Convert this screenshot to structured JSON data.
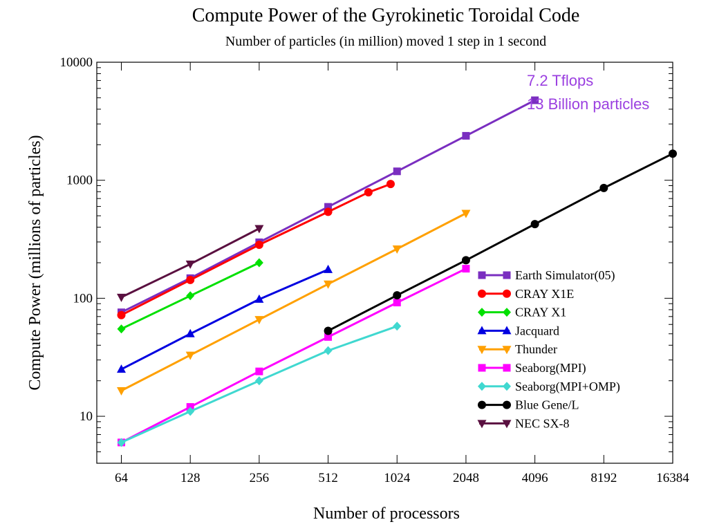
{
  "chart_data": {
    "type": "line",
    "title": "Compute Power of the Gyrokinetic Toroidal Code",
    "subtitle": "Number of particles (in million) moved 1 step in 1 second",
    "xlabel": "Number of processors",
    "ylabel": "Compute Power (millions of particles)",
    "x_scale": "log2",
    "y_scale": "log10",
    "xlim": [
      50,
      16384
    ],
    "ylim": [
      4,
      10000
    ],
    "x_ticks": [
      64,
      128,
      256,
      512,
      1024,
      2048,
      4096,
      8192,
      16384
    ],
    "x_tick_labels": [
      "64",
      "128",
      "256",
      "512",
      "1024",
      "2048",
      "4096",
      "8192",
      "16384"
    ],
    "y_ticks": [
      10,
      100,
      1000,
      10000
    ],
    "y_tick_labels": [
      "10",
      "100",
      "1000",
      "10000"
    ],
    "grid": false,
    "legend_position": "bottom-right",
    "series": [
      {
        "name": "Earth Simulator(05)",
        "color": "#7a2ec0",
        "marker": "square",
        "x": [
          64,
          128,
          256,
          512,
          1024,
          2048,
          4096
        ],
        "y": [
          76,
          148,
          298,
          595,
          1190,
          2380,
          4760
        ]
      },
      {
        "name": "CRAY X1E",
        "color": "#ff0000",
        "marker": "circle",
        "x": [
          64,
          128,
          256,
          512,
          768,
          960
        ],
        "y": [
          72,
          143,
          284,
          540,
          790,
          930
        ]
      },
      {
        "name": "CRAY X1",
        "color": "#00e000",
        "marker": "diamond",
        "x": [
          64,
          128,
          256
        ],
        "y": [
          55,
          105,
          200
        ]
      },
      {
        "name": "Jacquard",
        "color": "#0000e0",
        "marker": "triangle-up",
        "x": [
          64,
          128,
          256,
          512
        ],
        "y": [
          25,
          50,
          98,
          175
        ]
      },
      {
        "name": "Thunder",
        "color": "#ffa000",
        "marker": "triangle-down",
        "x": [
          64,
          128,
          256,
          512,
          1024,
          2048
        ],
        "y": [
          16.5,
          33,
          66,
          132,
          262,
          525
        ]
      },
      {
        "name": "Seaborg(MPI)",
        "color": "#ff00ff",
        "marker": "square",
        "x": [
          64,
          128,
          256,
          512,
          1024,
          2048
        ],
        "y": [
          6,
          12,
          24,
          47,
          92,
          178
        ]
      },
      {
        "name": "Seaborg(MPI+OMP)",
        "color": "#40d8d0",
        "marker": "diamond",
        "x": [
          64,
          128,
          256,
          512,
          1024
        ],
        "y": [
          6,
          11,
          20,
          36,
          58
        ]
      },
      {
        "name": "Blue Gene/L",
        "color": "#000000",
        "marker": "circle",
        "x": [
          512,
          1024,
          2048,
          4096,
          8192,
          16384
        ],
        "y": [
          53,
          106,
          210,
          425,
          860,
          1680
        ]
      },
      {
        "name": "NEC SX-8",
        "color": "#5a1040",
        "marker": "triangle-down",
        "x": [
          64,
          128,
          256
        ],
        "y": [
          102,
          195,
          390
        ]
      }
    ],
    "annotations": [
      {
        "text": "7.2 Tflops",
        "color": "#9b40e0"
      },
      {
        "text": "13 Billion particles",
        "color": "#9b40e0"
      }
    ]
  }
}
